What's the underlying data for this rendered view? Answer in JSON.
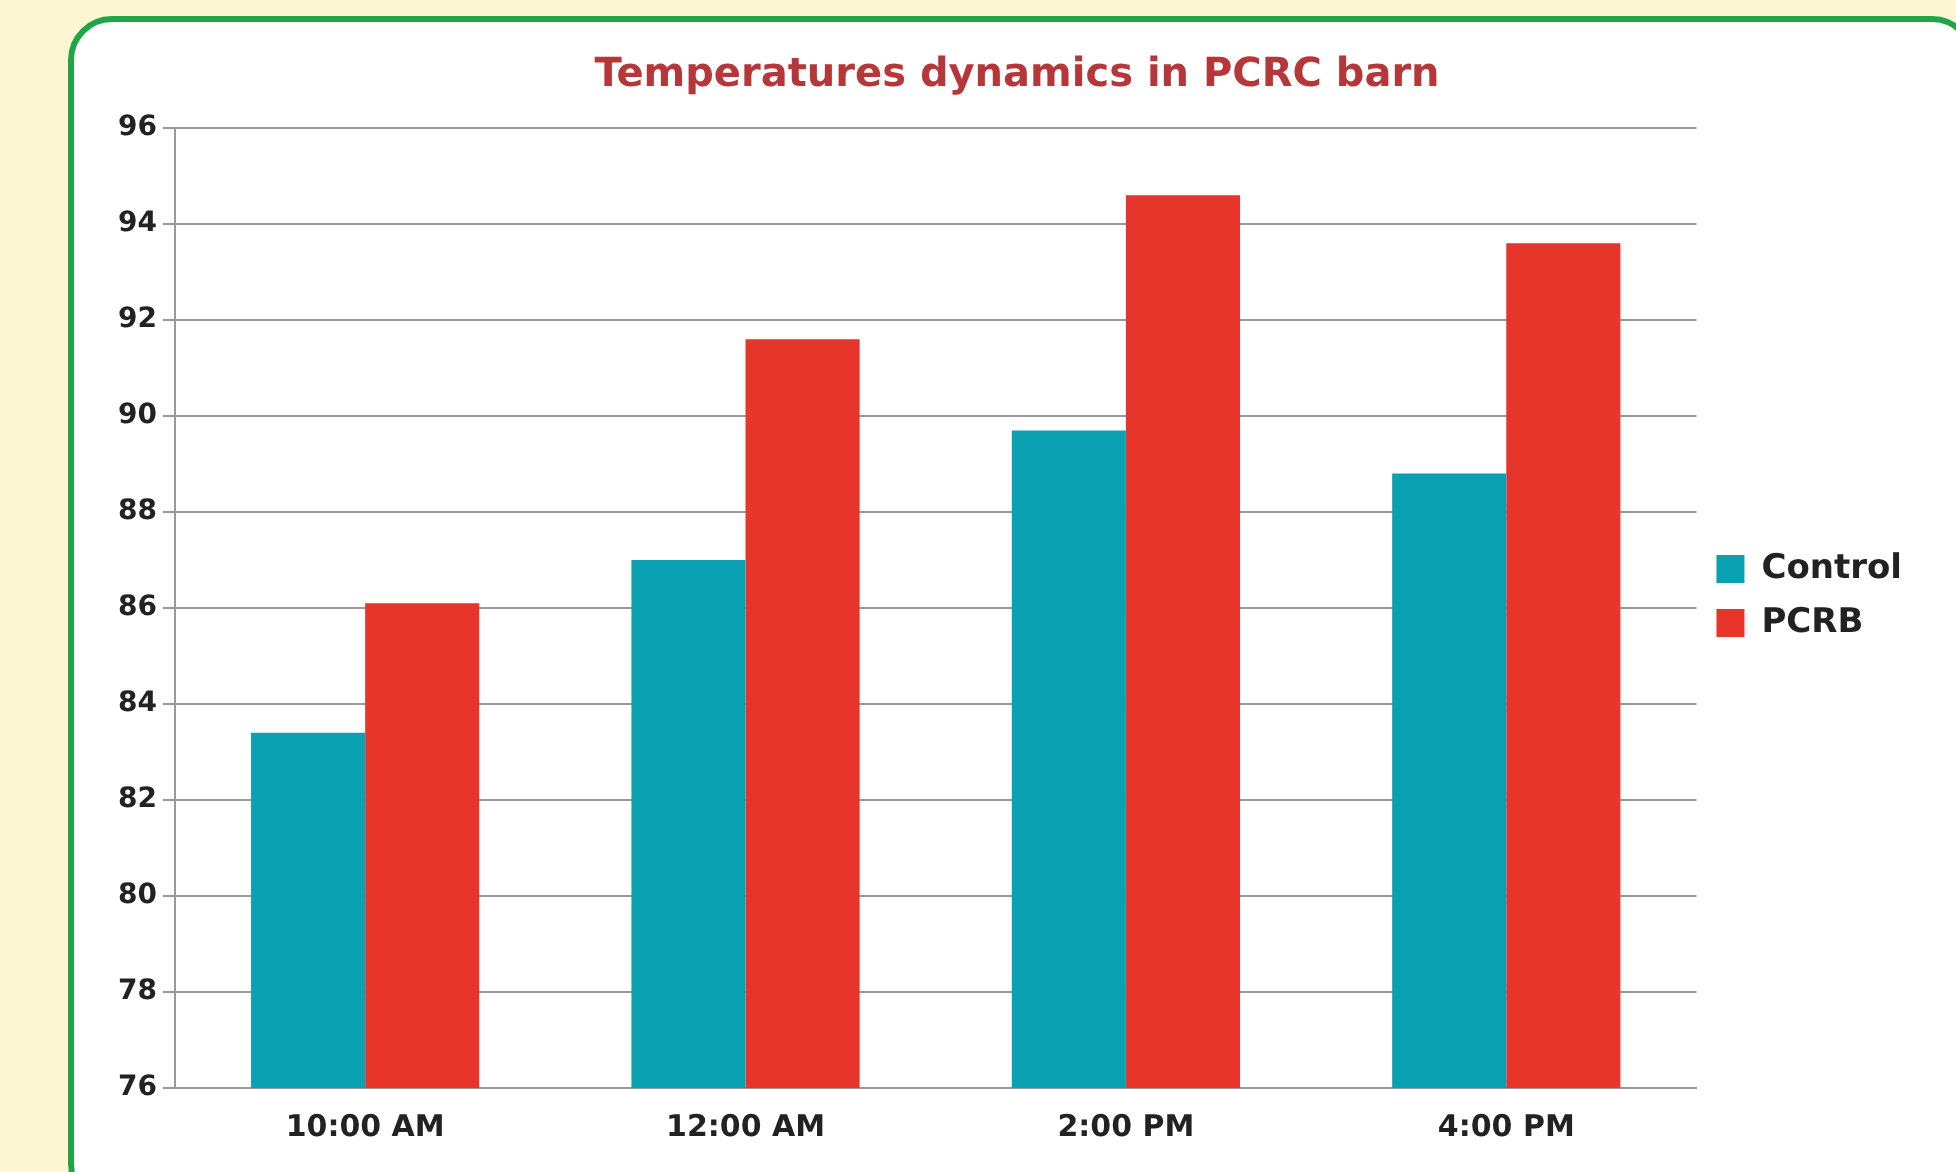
{
  "chart_data": {
    "type": "bar",
    "title": "Temperatures dynamics in PCRC barn",
    "categories": [
      "10:00 AM",
      "12:00 AM",
      "2:00 PM",
      "4:00 PM"
    ],
    "series": [
      {
        "name": "Control",
        "color": "#0aa2b2",
        "values": [
          83.4,
          87.0,
          89.7,
          88.8
        ]
      },
      {
        "name": "PCRB",
        "color": "#e8352b",
        "values": [
          86.1,
          91.6,
          94.6,
          93.6
        ]
      }
    ],
    "ylim": [
      76,
      96
    ],
    "yticks": [
      76,
      78,
      80,
      82,
      84,
      86,
      88,
      90,
      92,
      94,
      96
    ],
    "grid": "y",
    "legend": "right"
  }
}
